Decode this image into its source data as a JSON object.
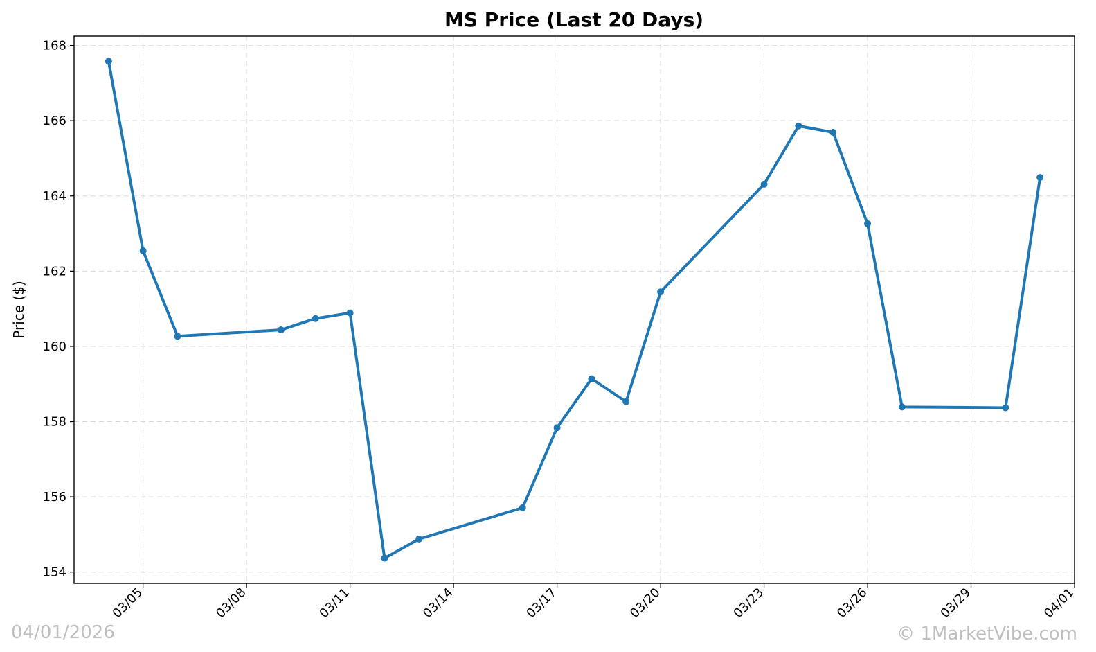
{
  "chart_data": {
    "type": "line",
    "title": "MS Price (Last 20 Days)",
    "xlabel": "",
    "ylabel": "Price ($)",
    "ylim": [
      153.7,
      168.25
    ],
    "xlim": [
      "2026-03-03",
      "2026-04-01"
    ],
    "grid": true,
    "y_ticks": [
      154,
      156,
      158,
      160,
      162,
      164,
      166,
      168
    ],
    "y_tick_labels": [
      "154",
      "156",
      "158",
      "160",
      "162",
      "164",
      "166",
      "168"
    ],
    "x_ticks": [
      "2026-03-05",
      "2026-03-08",
      "2026-03-11",
      "2026-03-14",
      "2026-03-17",
      "2026-03-20",
      "2026-03-23",
      "2026-03-26",
      "2026-03-29",
      "2026-04-01"
    ],
    "x_tick_labels": [
      "03/05",
      "03/08",
      "03/11",
      "03/14",
      "03/17",
      "03/20",
      "03/23",
      "03/26",
      "03/29",
      "04/01"
    ],
    "series": [
      {
        "color": "#1f77b4",
        "x": [
          "2026-03-04",
          "2026-03-05",
          "2026-03-06",
          "2026-03-09",
          "2026-03-10",
          "2026-03-11",
          "2026-03-12",
          "2026-03-13",
          "2026-03-16",
          "2026-03-17",
          "2026-03-18",
          "2026-03-19",
          "2026-03-20",
          "2026-03-23",
          "2026-03-24",
          "2026-03-25",
          "2026-03-26",
          "2026-03-27",
          "2026-03-30",
          "2026-03-31"
        ],
        "y": [
          167.58,
          162.54,
          160.27,
          160.44,
          160.74,
          160.89,
          154.37,
          154.88,
          155.71,
          157.84,
          159.14,
          158.53,
          161.45,
          164.31,
          165.86,
          165.69,
          163.26,
          158.39,
          158.37,
          164.49
        ]
      }
    ]
  },
  "watermark": {
    "date": "04/01/2026",
    "site": "© 1MarketVibe.com"
  }
}
